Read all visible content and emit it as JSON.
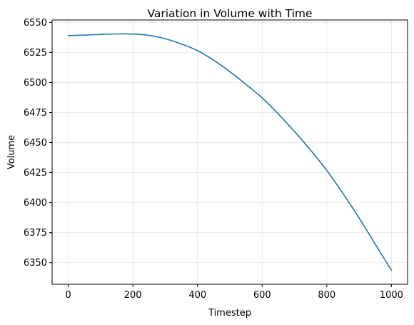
{
  "chart_data": {
    "type": "line",
    "title": "Variation in Volume with Time",
    "xlabel": "Timestep",
    "ylabel": "Volume",
    "xlim": [
      -50,
      1050
    ],
    "ylim": [
      6332,
      6552
    ],
    "xticks": [
      0,
      200,
      400,
      600,
      800,
      1000
    ],
    "yticks": [
      6350,
      6375,
      6400,
      6425,
      6450,
      6475,
      6500,
      6525,
      6550
    ],
    "grid": true,
    "legend": "none",
    "series": [
      {
        "color": "#1f77b4",
        "x": [
          0,
          50,
          100,
          150,
          200,
          250,
          300,
          350,
          400,
          450,
          500,
          550,
          600,
          650,
          700,
          750,
          800,
          850,
          900,
          950,
          1000
        ],
        "y": [
          6539,
          6539.4,
          6540,
          6540.4,
          6540.3,
          6539.2,
          6536.4,
          6532,
          6526.5,
          6518.5,
          6509,
          6498.4,
          6487.2,
          6473.8,
          6459.2,
          6443.6,
          6426.8,
          6407.6,
          6387.2,
          6365.4,
          6343.7
        ]
      }
    ]
  }
}
